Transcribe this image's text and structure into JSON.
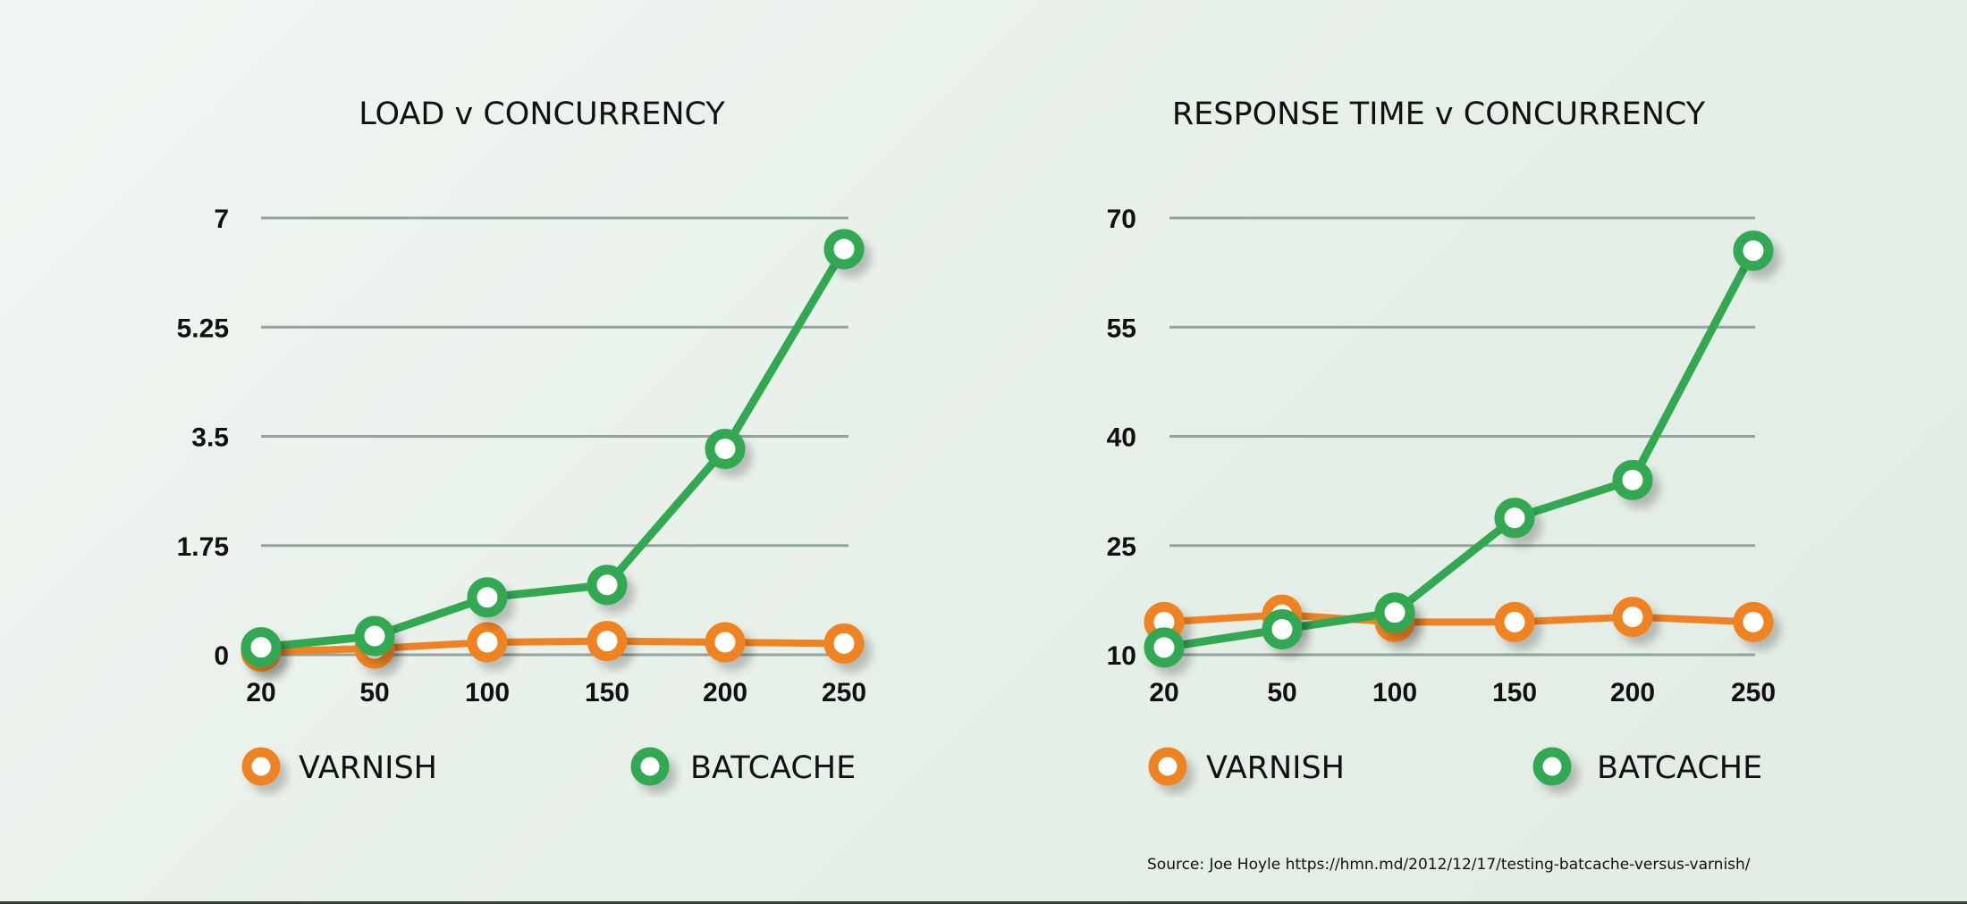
{
  "colors": {
    "varnish": "#ef8323",
    "batcache": "#33a853",
    "gridline": "#94a3a0",
    "text": "#111111"
  },
  "source": "Source: Joe Hoyle   https://hmn.md/2012/12/17/testing-batcache-versus-varnish/",
  "chart_data": [
    {
      "type": "line",
      "title": "LOAD v CONCURRENCY",
      "x": [
        20,
        50,
        100,
        150,
        200,
        250
      ],
      "y_ticks": [
        "0",
        "1.75",
        "3.5",
        "5.25",
        "7"
      ],
      "ylim": [
        0,
        7
      ],
      "grid": true,
      "legend_position": "bottom",
      "series": [
        {
          "name": "VARNISH",
          "color_key": "varnish",
          "values": [
            0.05,
            0.1,
            0.2,
            0.22,
            0.2,
            0.18
          ]
        },
        {
          "name": "BATCACHE",
          "color_key": "batcache",
          "values": [
            0.12,
            0.3,
            0.92,
            1.12,
            3.3,
            6.5
          ]
        }
      ]
    },
    {
      "type": "line",
      "title": "RESPONSE TIME v CONCURRENCY",
      "x": [
        20,
        50,
        100,
        150,
        200,
        250
      ],
      "y_ticks": [
        "10",
        "25",
        "40",
        "55",
        "70"
      ],
      "ylim": [
        10,
        70
      ],
      "grid": true,
      "legend_position": "bottom",
      "series": [
        {
          "name": "VARNISH",
          "color_key": "varnish",
          "values": [
            14.5,
            15.5,
            14.5,
            14.5,
            15.2,
            14.5
          ]
        },
        {
          "name": "BATCACHE",
          "color_key": "batcache",
          "values": [
            11,
            13.5,
            15.8,
            28.8,
            34,
            65.5
          ]
        }
      ]
    }
  ]
}
